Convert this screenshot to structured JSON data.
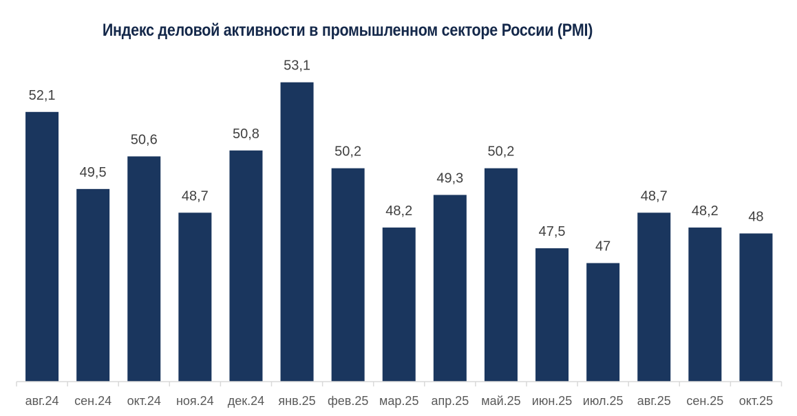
{
  "chart_data": {
    "type": "bar",
    "title": "Индекс деловой активности в промышленном секторе России (PMI)",
    "categories": [
      "авг.24",
      "сен.24",
      "окт.24",
      "ноя.24",
      "дек.24",
      "янв.25",
      "фев.25",
      "мар.25",
      "апр.25",
      "май.25",
      "июн.25",
      "июл.25",
      "авг.25",
      "сен.25",
      "окт.25"
    ],
    "values": [
      52.1,
      49.5,
      50.6,
      48.7,
      50.8,
      53.1,
      50.2,
      48.2,
      49.3,
      50.2,
      47.5,
      47,
      48.7,
      48.2,
      48
    ],
    "data_labels": [
      "52,1",
      "49,5",
      "50,6",
      "48,7",
      "50,8",
      "53,1",
      "50,2",
      "48,2",
      "49,3",
      "50,2",
      "47,5",
      "47",
      "48,7",
      "48,2",
      "48"
    ],
    "xlabel": "",
    "ylabel": "",
    "ylim": [
      43,
      54
    ],
    "grid": false,
    "colors": {
      "bar": "#1a365e",
      "axis": "#d9d9d9"
    }
  }
}
